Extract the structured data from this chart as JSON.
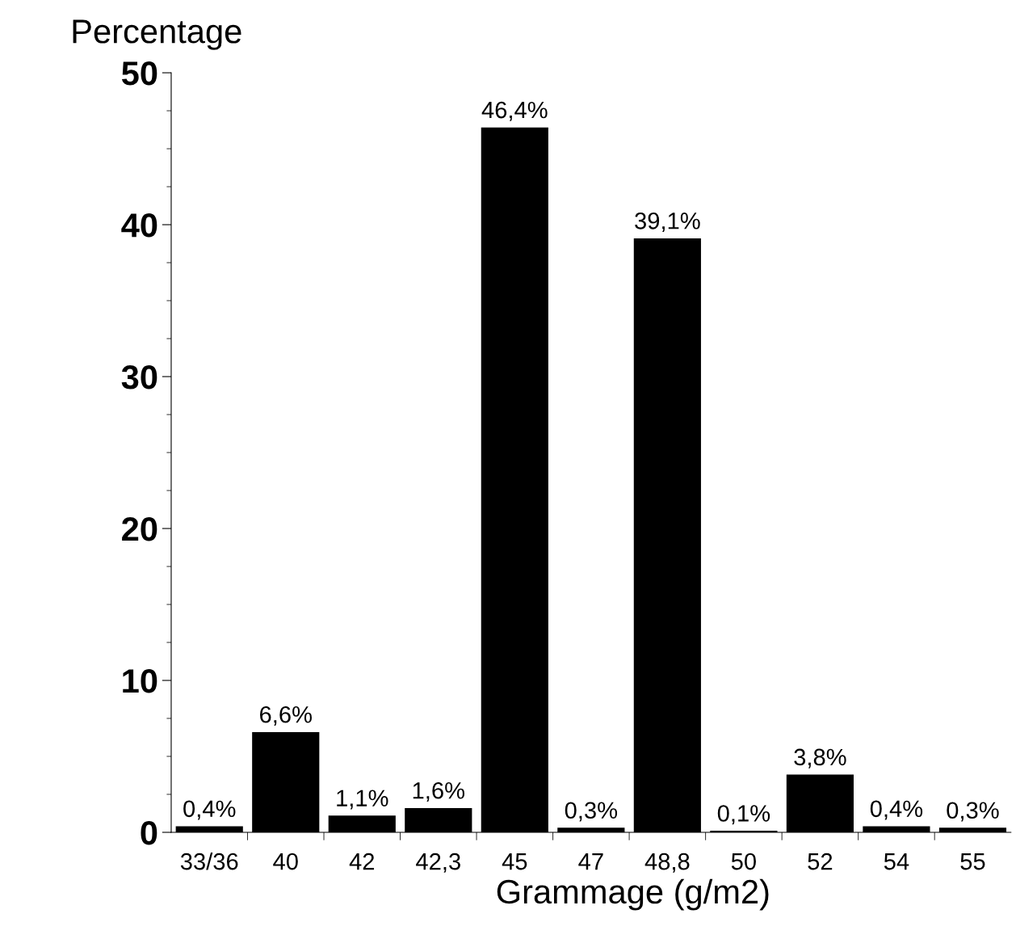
{
  "chart_data": {
    "type": "bar",
    "xlabel": "Grammage (g/m2)",
    "ylabel": "Percentage",
    "categories": [
      "33/36",
      "40",
      "42",
      "42,3",
      "45",
      "47",
      "48,8",
      "50",
      "52",
      "54",
      "55"
    ],
    "values": [
      0.4,
      6.6,
      1.1,
      1.6,
      46.4,
      0.3,
      39.1,
      0.1,
      3.8,
      0.4,
      0.3
    ],
    "value_labels": [
      "0,4%",
      "6,6%",
      "1,1%",
      "1,6%",
      "46,4%",
      "0,3%",
      "39,1%",
      "0,1%",
      "3,8%",
      "0,4%",
      "0,3%"
    ],
    "color": "#000000",
    "ylim": [
      0,
      50
    ],
    "yticks": [
      0,
      {
        "value": 2.5,
        "label": null
      },
      {
        "value": 5,
        "label": null
      },
      {
        "value": 7.5,
        "label": null
      },
      10,
      {
        "value": 12.5,
        "label": null
      },
      {
        "value": 15,
        "label": null
      },
      {
        "value": 17.5,
        "label": null
      },
      20,
      {
        "value": 22.5,
        "label": null
      },
      {
        "value": 25,
        "label": null
      },
      {
        "value": 27.5,
        "label": null
      },
      30,
      {
        "value": 32.5,
        "label": null
      },
      {
        "value": 35,
        "label": null
      },
      {
        "value": 37.5,
        "label": null
      },
      40,
      {
        "value": 42.5,
        "label": null
      },
      {
        "value": 45,
        "label": null
      },
      {
        "value": 47.5,
        "label": null
      },
      50
    ],
    "grid": false,
    "legend": false
  }
}
